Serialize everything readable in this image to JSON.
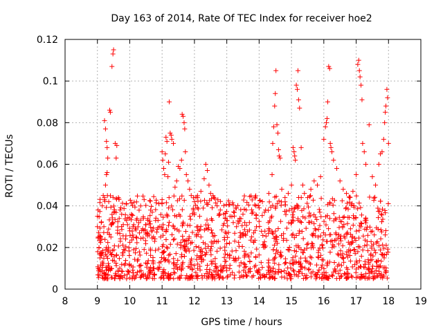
{
  "chart_data": {
    "type": "scatter",
    "title": "Day 163 of 2014, Rate Of TEC Index for receiver hoe2",
    "xlabel": "GPS time / hours",
    "ylabel": "ROTI / TECUs",
    "xlim": [
      8,
      19
    ],
    "ylim": [
      0,
      0.12
    ],
    "xticks": [
      8,
      9,
      10,
      11,
      12,
      13,
      14,
      15,
      16,
      17,
      18,
      19
    ],
    "yticks": [
      "0",
      "0.02",
      "0.04",
      "0.06",
      "0.08",
      "0.1",
      "0.12"
    ],
    "grid": true,
    "marker": "+",
    "series_color": "#ff0000",
    "series": [
      {
        "name": "ROTI",
        "points": [
          [
            9.0,
            0.03
          ],
          [
            9.0,
            0.035
          ],
          [
            9.02,
            0.038
          ],
          [
            9.05,
            0.02
          ],
          [
            9.08,
            0.015
          ],
          [
            9.1,
            0.025
          ],
          [
            9.12,
            0.032
          ],
          [
            9.15,
            0.04
          ],
          [
            9.18,
            0.045
          ],
          [
            9.2,
            0.03
          ],
          [
            9.22,
            0.043
          ],
          [
            9.25,
            0.05
          ],
          [
            9.28,
            0.055
          ],
          [
            9.3,
            0.056
          ],
          [
            9.32,
            0.063
          ],
          [
            9.35,
            0.042
          ],
          [
            9.38,
            0.086
          ],
          [
            9.4,
            0.085
          ],
          [
            9.45,
            0.107
          ],
          [
            9.48,
            0.113
          ],
          [
            9.5,
            0.115
          ],
          [
            9.55,
            0.07
          ],
          [
            9.58,
            0.063
          ],
          [
            9.6,
            0.069
          ],
          [
            9.22,
            0.081
          ],
          [
            9.25,
            0.077
          ],
          [
            9.28,
            0.071
          ],
          [
            9.3,
            0.068
          ],
          [
            9.65,
            0.044
          ],
          [
            9.7,
            0.038
          ],
          [
            9.75,
            0.036
          ],
          [
            9.8,
            0.031
          ],
          [
            9.9,
            0.033
          ],
          [
            10.0,
            0.028
          ],
          [
            10.1,
            0.03
          ],
          [
            10.2,
            0.025
          ],
          [
            10.3,
            0.027
          ],
          [
            10.4,
            0.029
          ],
          [
            10.5,
            0.031
          ],
          [
            10.6,
            0.026
          ],
          [
            10.7,
            0.028
          ],
          [
            10.8,
            0.033
          ],
          [
            10.9,
            0.041
          ],
          [
            11.0,
            0.043
          ],
          [
            11.0,
            0.066
          ],
          [
            11.02,
            0.062
          ],
          [
            11.05,
            0.058
          ],
          [
            11.08,
            0.055
          ],
          [
            11.1,
            0.065
          ],
          [
            11.12,
            0.073
          ],
          [
            11.15,
            0.071
          ],
          [
            11.18,
            0.054
          ],
          [
            11.2,
            0.061
          ],
          [
            11.22,
            0.09
          ],
          [
            11.25,
            0.075
          ],
          [
            11.28,
            0.074
          ],
          [
            11.3,
            0.072
          ],
          [
            11.35,
            0.07
          ],
          [
            11.4,
            0.049
          ],
          [
            11.45,
            0.052
          ],
          [
            11.5,
            0.059
          ],
          [
            11.55,
            0.058
          ],
          [
            11.6,
            0.062
          ],
          [
            11.62,
            0.084
          ],
          [
            11.65,
            0.083
          ],
          [
            11.68,
            0.08
          ],
          [
            11.7,
            0.077
          ],
          [
            11.72,
            0.066
          ],
          [
            11.75,
            0.055
          ],
          [
            11.8,
            0.052
          ],
          [
            11.85,
            0.048
          ],
          [
            11.9,
            0.045
          ],
          [
            12.0,
            0.042
          ],
          [
            12.1,
            0.044
          ],
          [
            12.2,
            0.047
          ],
          [
            12.3,
            0.053
          ],
          [
            12.35,
            0.06
          ],
          [
            12.4,
            0.057
          ],
          [
            12.45,
            0.05
          ],
          [
            12.5,
            0.046
          ],
          [
            12.6,
            0.044
          ],
          [
            12.7,
            0.04
          ],
          [
            12.8,
            0.038
          ],
          [
            12.9,
            0.036
          ],
          [
            13.0,
            0.033
          ],
          [
            13.1,
            0.035
          ],
          [
            13.2,
            0.032
          ],
          [
            13.3,
            0.03
          ],
          [
            13.4,
            0.034
          ],
          [
            13.5,
            0.036
          ],
          [
            13.6,
            0.038
          ],
          [
            13.7,
            0.032
          ],
          [
            13.8,
            0.037
          ],
          [
            13.9,
            0.04
          ],
          [
            14.0,
            0.039
          ],
          [
            14.1,
            0.042
          ],
          [
            14.2,
            0.038
          ],
          [
            14.3,
            0.046
          ],
          [
            14.4,
            0.055
          ],
          [
            14.42,
            0.07
          ],
          [
            14.45,
            0.078
          ],
          [
            14.48,
            0.088
          ],
          [
            14.5,
            0.094
          ],
          [
            14.52,
            0.105
          ],
          [
            14.55,
            0.079
          ],
          [
            14.58,
            0.075
          ],
          [
            14.6,
            0.067
          ],
          [
            14.62,
            0.064
          ],
          [
            14.65,
            0.063
          ],
          [
            14.7,
            0.048
          ],
          [
            14.8,
            0.044
          ],
          [
            14.9,
            0.046
          ],
          [
            15.0,
            0.05
          ],
          [
            15.05,
            0.068
          ],
          [
            15.08,
            0.066
          ],
          [
            15.1,
            0.064
          ],
          [
            15.12,
            0.062
          ],
          [
            15.15,
            0.098
          ],
          [
            15.18,
            0.096
          ],
          [
            15.2,
            0.105
          ],
          [
            15.22,
            0.091
          ],
          [
            15.25,
            0.087
          ],
          [
            15.3,
            0.068
          ],
          [
            15.35,
            0.05
          ],
          [
            15.4,
            0.046
          ],
          [
            15.5,
            0.044
          ],
          [
            15.6,
            0.048
          ],
          [
            15.7,
            0.052
          ],
          [
            15.8,
            0.05
          ],
          [
            15.9,
            0.054
          ],
          [
            16.0,
            0.072
          ],
          [
            16.05,
            0.078
          ],
          [
            16.08,
            0.08
          ],
          [
            16.1,
            0.082
          ],
          [
            16.12,
            0.09
          ],
          [
            16.15,
            0.107
          ],
          [
            16.18,
            0.106
          ],
          [
            16.2,
            0.07
          ],
          [
            16.22,
            0.068
          ],
          [
            16.25,
            0.066
          ],
          [
            16.3,
            0.062
          ],
          [
            16.4,
            0.058
          ],
          [
            16.5,
            0.052
          ],
          [
            16.6,
            0.048
          ],
          [
            16.7,
            0.046
          ],
          [
            16.8,
            0.044
          ],
          [
            16.9,
            0.047
          ],
          [
            17.0,
            0.055
          ],
          [
            17.05,
            0.108
          ],
          [
            17.08,
            0.11
          ],
          [
            17.1,
            0.105
          ],
          [
            17.12,
            0.102
          ],
          [
            17.15,
            0.098
          ],
          [
            17.18,
            0.091
          ],
          [
            17.2,
            0.07
          ],
          [
            17.25,
            0.066
          ],
          [
            17.3,
            0.06
          ],
          [
            17.4,
            0.079
          ],
          [
            17.5,
            0.054
          ],
          [
            17.6,
            0.05
          ],
          [
            17.7,
            0.06
          ],
          [
            17.75,
            0.065
          ],
          [
            17.8,
            0.066
          ],
          [
            17.85,
            0.072
          ],
          [
            17.88,
            0.08
          ],
          [
            17.9,
            0.085
          ],
          [
            17.92,
            0.088
          ],
          [
            17.95,
            0.096
          ],
          [
            17.97,
            0.092
          ],
          [
            18.0,
            0.07
          ]
        ]
      }
    ]
  }
}
